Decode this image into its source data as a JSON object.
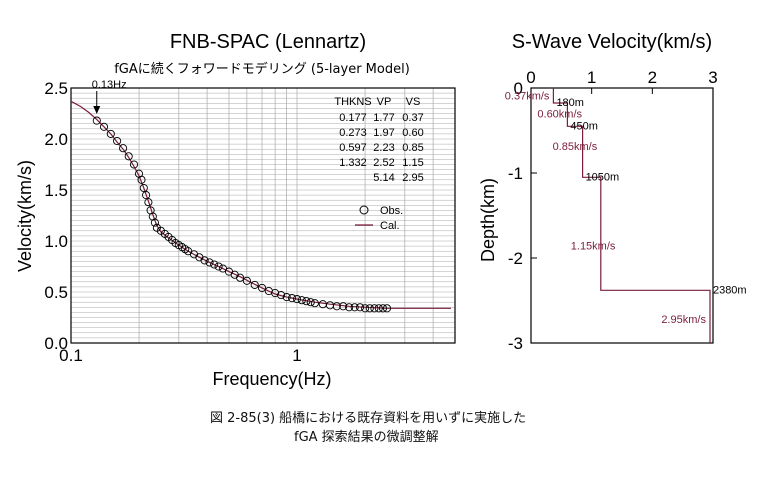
{
  "chart_data": [
    {
      "type": "scatter",
      "title": "FNB-SPAC (Lennartz)",
      "subtitle": "fGAに続くフォワードモデリング (5-layer Model)",
      "xlabel": "Frequency(Hz)",
      "ylabel": "Velocity(km/s)",
      "xscale": "log",
      "xlim": [
        0.1,
        5
      ],
      "ylim": [
        0,
        2.5
      ],
      "x_tick_labels": [
        "0.1",
        "1"
      ],
      "y_tick_labels": [
        "0.0",
        "0.5",
        "1.0",
        "1.5",
        "2.0",
        "2.5"
      ],
      "grid": true,
      "annotation": "0.13Hz",
      "annotation_x": 0.13,
      "legend": {
        "placement": "right",
        "entries": [
          "Obs.",
          "Cal."
        ]
      },
      "layer_table": {
        "headers": [
          "THKNS",
          "VP",
          "VS"
        ],
        "rows": [
          [
            "0.177",
            "1.77",
            "0.37"
          ],
          [
            "0.273",
            "1.97",
            "0.60"
          ],
          [
            "0.597",
            "2.23",
            "0.85"
          ],
          [
            "1.332",
            "2.52",
            "1.15"
          ],
          [
            "",
            "5.14",
            "2.95"
          ]
        ]
      },
      "series": [
        {
          "name": "Obs.",
          "type": "scatter",
          "x": [
            0.13,
            0.14,
            0.15,
            0.16,
            0.17,
            0.18,
            0.19,
            0.2,
            0.205,
            0.21,
            0.215,
            0.22,
            0.225,
            0.23,
            0.235,
            0.24,
            0.25,
            0.26,
            0.27,
            0.28,
            0.29,
            0.3,
            0.31,
            0.32,
            0.33,
            0.35,
            0.37,
            0.39,
            0.41,
            0.43,
            0.45,
            0.47,
            0.5,
            0.53,
            0.56,
            0.6,
            0.65,
            0.7,
            0.75,
            0.8,
            0.85,
            0.9,
            0.95,
            1.0,
            1.05,
            1.1,
            1.15,
            1.2,
            1.3,
            1.4,
            1.5,
            1.6,
            1.7,
            1.8,
            1.9,
            2.0,
            2.1,
            2.2,
            2.3,
            2.4,
            2.5
          ],
          "y": [
            2.18,
            2.12,
            2.05,
            1.98,
            1.91,
            1.83,
            1.75,
            1.66,
            1.6,
            1.52,
            1.45,
            1.38,
            1.3,
            1.24,
            1.18,
            1.13,
            1.1,
            1.07,
            1.04,
            1.01,
            0.98,
            0.96,
            0.94,
            0.92,
            0.9,
            0.87,
            0.84,
            0.81,
            0.79,
            0.77,
            0.75,
            0.73,
            0.7,
            0.67,
            0.64,
            0.61,
            0.57,
            0.54,
            0.51,
            0.49,
            0.47,
            0.45,
            0.44,
            0.43,
            0.42,
            0.41,
            0.4,
            0.39,
            0.38,
            0.37,
            0.36,
            0.36,
            0.35,
            0.35,
            0.35,
            0.34,
            0.34,
            0.34,
            0.34,
            0.34,
            0.34
          ]
        },
        {
          "name": "Cal.",
          "type": "line",
          "x": [
            0.1,
            0.11,
            0.12,
            0.13,
            0.14,
            0.15,
            0.16,
            0.17,
            0.18,
            0.19,
            0.2,
            0.21,
            0.22,
            0.23,
            0.24,
            0.25,
            0.27,
            0.3,
            0.33,
            0.37,
            0.41,
            0.45,
            0.5,
            0.56,
            0.63,
            0.7,
            0.8,
            0.9,
            1.0,
            1.2,
            1.4,
            1.7,
            2.0,
            2.5,
            3.0,
            4.0,
            4.8
          ],
          "y": [
            2.37,
            2.32,
            2.26,
            2.19,
            2.12,
            2.05,
            1.97,
            1.9,
            1.82,
            1.73,
            1.64,
            1.52,
            1.39,
            1.26,
            1.15,
            1.09,
            1.03,
            0.96,
            0.9,
            0.84,
            0.79,
            0.75,
            0.7,
            0.65,
            0.59,
            0.54,
            0.48,
            0.45,
            0.43,
            0.4,
            0.38,
            0.36,
            0.35,
            0.34,
            0.34,
            0.34,
            0.34
          ]
        }
      ]
    },
    {
      "type": "line",
      "title": "S-Wave Velocity(km/s)",
      "xlabel": "",
      "ylabel": "Depth(km)",
      "xlim": [
        0,
        3
      ],
      "ylim": [
        -3,
        0
      ],
      "x_tick_labels": [
        "0",
        "1",
        "2",
        "3"
      ],
      "y_tick_labels": [
        "0",
        "-1",
        "-2",
        "-3"
      ],
      "grid": false,
      "profile": {
        "velocity": [
          0.37,
          0.37,
          0.6,
          0.6,
          0.85,
          0.85,
          1.15,
          1.15,
          2.95,
          2.95
        ],
        "depth": [
          0,
          -0.177,
          -0.177,
          -0.45,
          -0.45,
          -1.05,
          -1.05,
          -2.38,
          -2.38,
          -3.0
        ]
      },
      "velocity_labels": [
        {
          "text": "0.37km/s",
          "v": 0.37,
          "depth": -0.09
        },
        {
          "text": "0.60km/s",
          "v": 0.6,
          "depth": -0.3
        },
        {
          "text": "0.85km/s",
          "v": 0.85,
          "depth": -0.68
        },
        {
          "text": "1.15km/s",
          "v": 1.15,
          "depth": -1.85
        },
        {
          "text": "2.95km/s",
          "v": 2.95,
          "depth": -2.72
        }
      ],
      "depth_labels": [
        {
          "text": "180m",
          "v": 0.37,
          "depth": -0.177
        },
        {
          "text": "450m",
          "v": 0.6,
          "depth": -0.45
        },
        {
          "text": "1050m",
          "v": 0.85,
          "depth": -1.05
        },
        {
          "text": "2380m",
          "v": 2.95,
          "depth": -2.38
        }
      ]
    }
  ],
  "caption": {
    "line1": "図 2-85(3) 船橋における既存資料を用いずに実施した",
    "line2": "fGA 探索結果の微調整解"
  },
  "colors": {
    "calc_line": "#7a1e3a",
    "obs_marker": "#000000",
    "profile": "#7a1e3a"
  }
}
